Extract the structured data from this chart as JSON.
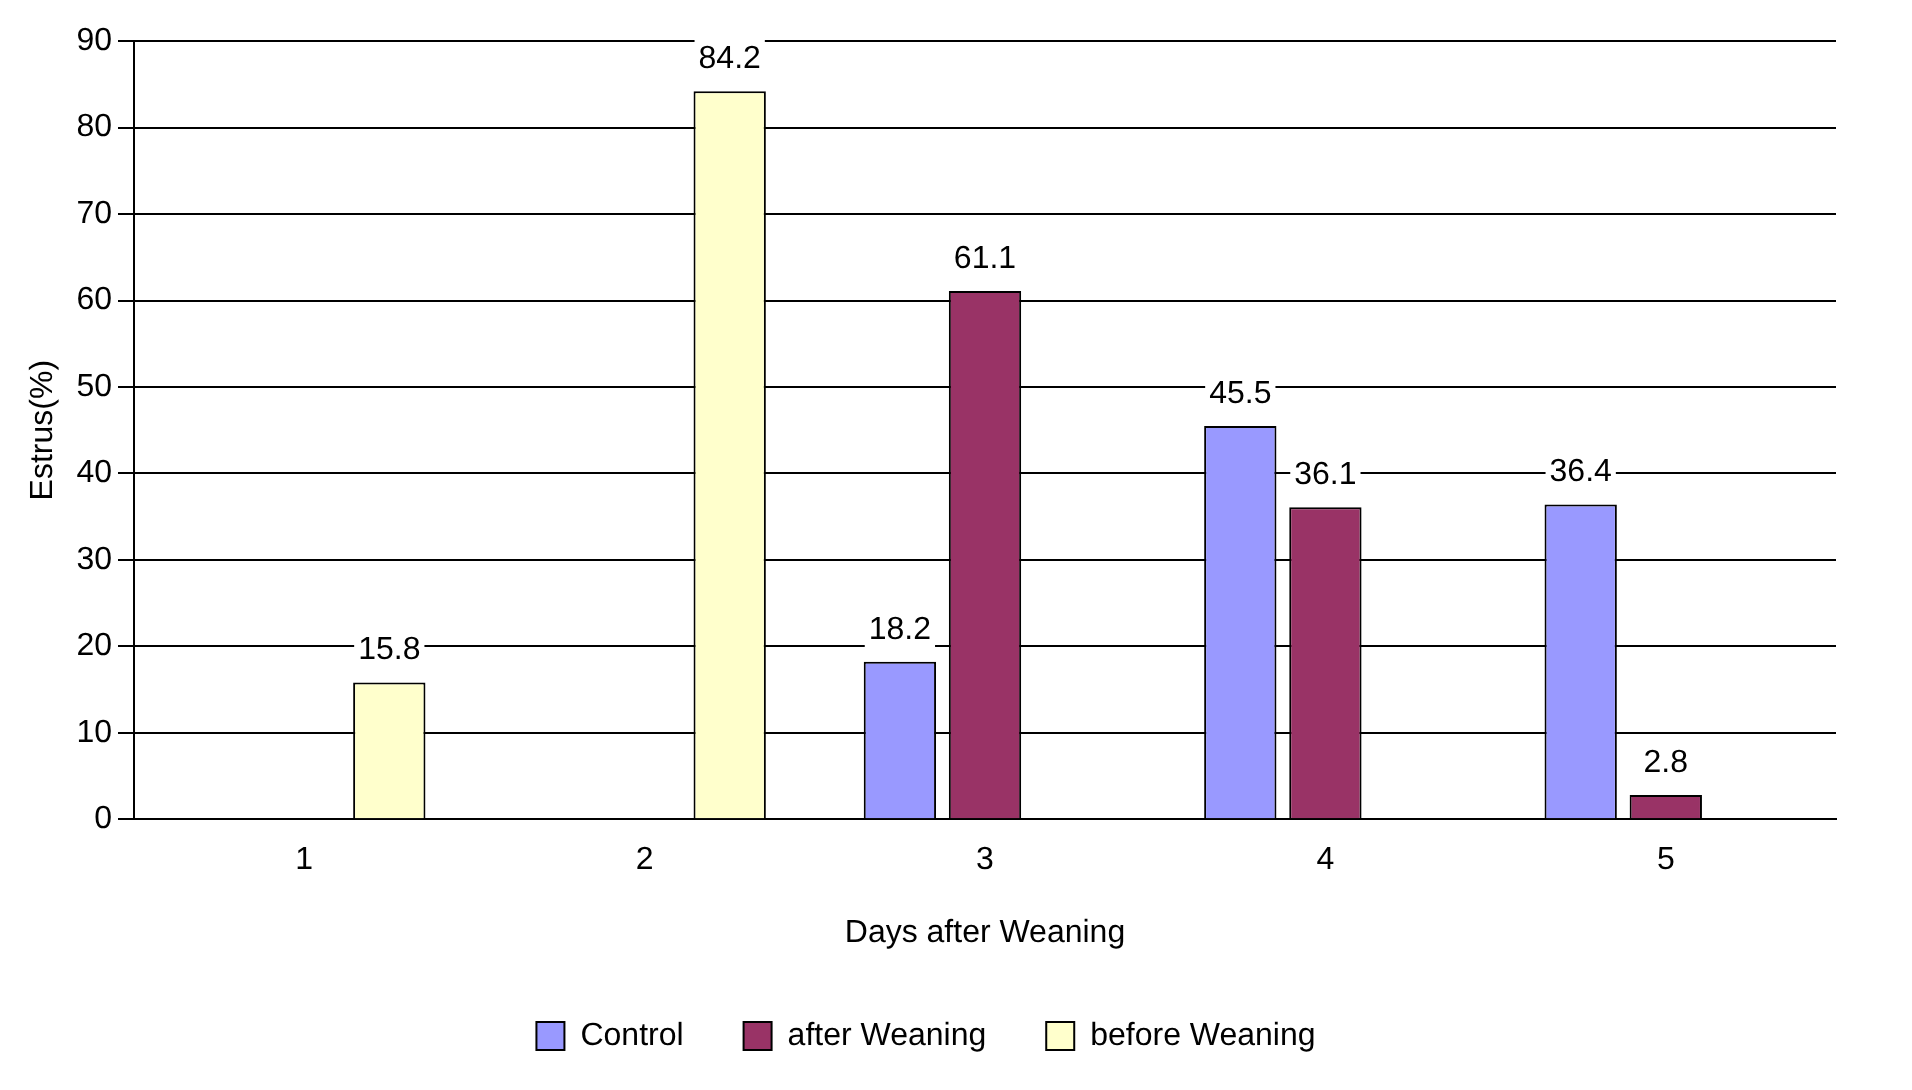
{
  "chart_data": {
    "type": "bar",
    "xlabel": "Days after Weaning",
    "ylabel": "Estrus(%)",
    "categories": [
      "1",
      "2",
      "3",
      "4",
      "5"
    ],
    "series": [
      {
        "name": "Control",
        "color": "#9999ff",
        "values": [
          null,
          null,
          18.2,
          45.5,
          36.4
        ]
      },
      {
        "name": "after Weaning",
        "color": "#993366",
        "values": [
          null,
          null,
          61.1,
          36.1,
          2.8
        ]
      },
      {
        "name": "before Weaning",
        "color": "#ffffcc",
        "values": [
          15.8,
          84.2,
          null,
          null,
          null
        ]
      }
    ],
    "ylim": [
      0,
      90
    ],
    "yticks": [
      0,
      10,
      20,
      30,
      40,
      50,
      60,
      70,
      80,
      90
    ],
    "grid": "y",
    "legend": "bottom",
    "data_labels": true
  }
}
